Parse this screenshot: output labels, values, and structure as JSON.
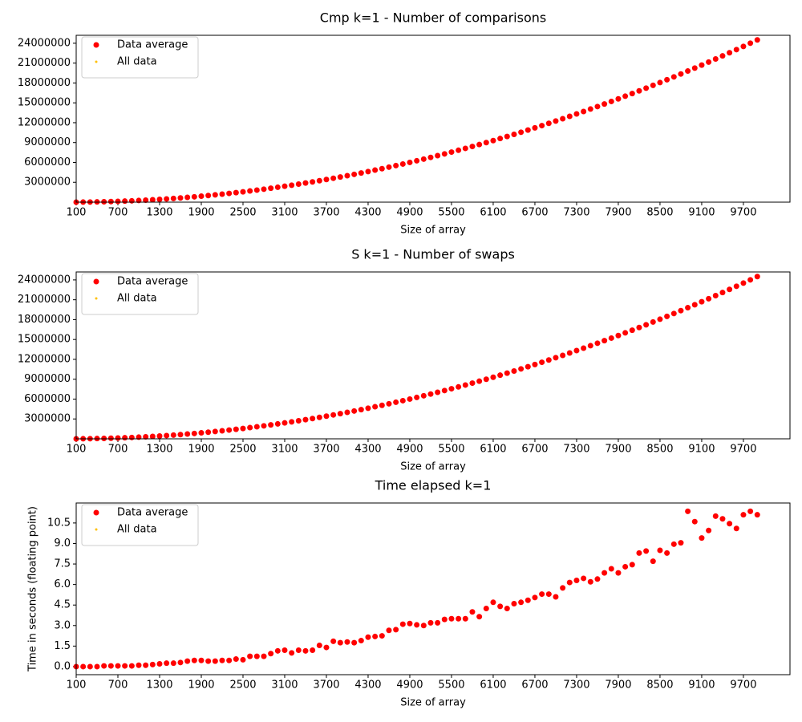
{
  "chart_data": [
    {
      "type": "scatter",
      "title": "Cmp k=1 - Number of comparisons",
      "x_label": "Size of array",
      "x": [
        100,
        200,
        300,
        400,
        500,
        600,
        700,
        800,
        900,
        1000,
        1100,
        1200,
        1300,
        1400,
        1500,
        1600,
        1700,
        1800,
        1900,
        2000,
        2100,
        2200,
        2300,
        2400,
        2500,
        2600,
        2700,
        2800,
        2900,
        3000,
        3100,
        3200,
        3300,
        3400,
        3500,
        3600,
        3700,
        3800,
        3900,
        4000,
        4100,
        4200,
        4300,
        4400,
        4500,
        4600,
        4700,
        4800,
        4900,
        5000,
        5100,
        5200,
        5300,
        5400,
        5500,
        5600,
        5700,
        5800,
        5900,
        6000,
        6100,
        6200,
        6300,
        6400,
        6500,
        6600,
        6700,
        6800,
        6900,
        7000,
        7100,
        7200,
        7300,
        7400,
        7500,
        7600,
        7700,
        7800,
        7900,
        8000,
        8100,
        8200,
        8300,
        8400,
        8500,
        8600,
        8700,
        8800,
        8900,
        9000,
        9100,
        9200,
        9300,
        9400,
        9500,
        9600,
        9700,
        9800,
        9900
      ],
      "series": [
        {
          "name": "Data average",
          "color": "#ff0000",
          "values": [
            2500,
            10000,
            22500,
            40000,
            62500,
            90000,
            122500,
            160000,
            202500,
            250000,
            302500,
            360000,
            422500,
            490000,
            562500,
            640000,
            722500,
            810000,
            902500,
            1000000,
            1102500,
            1210000,
            1322500,
            1440000,
            1562500,
            1690000,
            1822500,
            1960000,
            2102500,
            2250000,
            2402500,
            2560000,
            2722500,
            2890000,
            3062500,
            3240000,
            3422500,
            3610000,
            3802500,
            4000000,
            4202500,
            4410000,
            4622500,
            4840000,
            5062500,
            5290000,
            5522500,
            5760000,
            6002500,
            6250000,
            6502500,
            6760000,
            7022500,
            7290000,
            7562500,
            7840000,
            8122500,
            8410000,
            8702500,
            9000000,
            9302500,
            9610000,
            9922500,
            10240000,
            10562500,
            10890000,
            11222500,
            11560000,
            11902500,
            12250000,
            12602500,
            12960000,
            13322500,
            13690000,
            14062500,
            14440000,
            14822500,
            15210000,
            15602500,
            16000000,
            16402500,
            16810000,
            17222500,
            17640000,
            18062500,
            18490000,
            18922500,
            19360000,
            19802500,
            20250000,
            20702500,
            21160000,
            21622500,
            22090000,
            22562500,
            23040000,
            23522500,
            24010000,
            24502500
          ]
        },
        {
          "name": "All data",
          "color": "#ffc000"
        }
      ],
      "xlim": [
        100,
        10370
      ],
      "xticks": [
        100,
        700,
        1300,
        1900,
        2500,
        3100,
        3700,
        4300,
        4900,
        5500,
        6100,
        6700,
        7300,
        7900,
        8500,
        9100,
        9700
      ],
      "ylim": [
        0,
        25200000
      ],
      "yticks": [
        3000000,
        6000000,
        9000000,
        12000000,
        15000000,
        18000000,
        21000000,
        24000000
      ],
      "legend": "upper left"
    },
    {
      "type": "scatter",
      "title": "S k=1 - Number of swaps",
      "x_label": "Size of array",
      "x": [
        100,
        200,
        300,
        400,
        500,
        600,
        700,
        800,
        900,
        1000,
        1100,
        1200,
        1300,
        1400,
        1500,
        1600,
        1700,
        1800,
        1900,
        2000,
        2100,
        2200,
        2300,
        2400,
        2500,
        2600,
        2700,
        2800,
        2900,
        3000,
        3100,
        3200,
        3300,
        3400,
        3500,
        3600,
        3700,
        3800,
        3900,
        4000,
        4100,
        4200,
        4300,
        4400,
        4500,
        4600,
        4700,
        4800,
        4900,
        5000,
        5100,
        5200,
        5300,
        5400,
        5500,
        5600,
        5700,
        5800,
        5900,
        6000,
        6100,
        6200,
        6300,
        6400,
        6500,
        6600,
        6700,
        6800,
        6900,
        7000,
        7100,
        7200,
        7300,
        7400,
        7500,
        7600,
        7700,
        7800,
        7900,
        8000,
        8100,
        8200,
        8300,
        8400,
        8500,
        8600,
        8700,
        8800,
        8900,
        9000,
        9100,
        9200,
        9300,
        9400,
        9500,
        9600,
        9700,
        9800,
        9900
      ],
      "series": [
        {
          "name": "Data average",
          "color": "#ff0000",
          "values": [
            2500,
            10000,
            22500,
            40000,
            62500,
            90000,
            122500,
            160000,
            202500,
            250000,
            302500,
            360000,
            422500,
            490000,
            562500,
            640000,
            722500,
            810000,
            902500,
            1000000,
            1102500,
            1210000,
            1322500,
            1440000,
            1562500,
            1690000,
            1822500,
            1960000,
            2102500,
            2250000,
            2402500,
            2560000,
            2722500,
            2890000,
            3062500,
            3240000,
            3422500,
            3610000,
            3802500,
            4000000,
            4202500,
            4410000,
            4622500,
            4840000,
            5062500,
            5290000,
            5522500,
            5760000,
            6002500,
            6250000,
            6502500,
            6760000,
            7022500,
            7290000,
            7562500,
            7840000,
            8122500,
            8410000,
            8702500,
            9000000,
            9302500,
            9610000,
            9922500,
            10240000,
            10562500,
            10890000,
            11222500,
            11560000,
            11902500,
            12250000,
            12602500,
            12960000,
            13322500,
            13690000,
            14062500,
            14440000,
            14822500,
            15210000,
            15602500,
            16000000,
            16402500,
            16810000,
            17222500,
            17640000,
            18062500,
            18490000,
            18922500,
            19360000,
            19802500,
            20250000,
            20702500,
            21160000,
            21622500,
            22090000,
            22562500,
            23040000,
            23522500,
            24010000,
            24502500
          ]
        },
        {
          "name": "All data",
          "color": "#ffc000"
        }
      ],
      "xlim": [
        100,
        10370
      ],
      "xticks": [
        100,
        700,
        1300,
        1900,
        2500,
        3100,
        3700,
        4300,
        4900,
        5500,
        6100,
        6700,
        7300,
        7900,
        8500,
        9100,
        9700
      ],
      "ylim": [
        0,
        25200000
      ],
      "yticks": [
        3000000,
        6000000,
        9000000,
        12000000,
        15000000,
        18000000,
        21000000,
        24000000
      ],
      "legend": "upper left"
    },
    {
      "type": "scatter",
      "title": "Time elapsed k=1",
      "x_label": "Size of array",
      "y_label": "Time in seconds (floating point)",
      "x": [
        100,
        200,
        300,
        400,
        500,
        600,
        700,
        800,
        900,
        1000,
        1100,
        1200,
        1300,
        1400,
        1500,
        1600,
        1700,
        1800,
        1900,
        2000,
        2100,
        2200,
        2300,
        2400,
        2500,
        2600,
        2700,
        2800,
        2900,
        3000,
        3100,
        3200,
        3300,
        3400,
        3500,
        3600,
        3700,
        3800,
        3900,
        4000,
        4100,
        4200,
        4300,
        4400,
        4500,
        4600,
        4700,
        4800,
        4900,
        5000,
        5100,
        5200,
        5300,
        5400,
        5500,
        5600,
        5700,
        5800,
        5900,
        6000,
        6100,
        6200,
        6300,
        6400,
        6500,
        6600,
        6700,
        6800,
        6900,
        7000,
        7100,
        7200,
        7300,
        7400,
        7500,
        7600,
        7700,
        7800,
        7900,
        8000,
        8100,
        8200,
        8300,
        8400,
        8500,
        8600,
        8700,
        8800,
        8900,
        9000,
        9100,
        9200,
        9300,
        9400,
        9500,
        9600,
        9700,
        9800,
        9900
      ],
      "series": [
        {
          "name": "Data average",
          "color": "#ff0000",
          "values": [
            0,
            0,
            0,
            0,
            0.05,
            0.05,
            0.05,
            0.05,
            0.05,
            0.1,
            0.1,
            0.15,
            0.2,
            0.25,
            0.25,
            0.3,
            0.4,
            0.45,
            0.45,
            0.4,
            0.4,
            0.45,
            0.45,
            0.55,
            0.5,
            0.75,
            0.75,
            0.75,
            0.95,
            1.15,
            1.2,
            1.0,
            1.2,
            1.15,
            1.2,
            1.55,
            1.4,
            1.85,
            1.75,
            1.8,
            1.75,
            1.9,
            2.15,
            2.2,
            2.25,
            2.65,
            2.7,
            3.1,
            3.15,
            3.05,
            3.0,
            3.2,
            3.2,
            3.45,
            3.5,
            3.5,
            3.5,
            4.0,
            3.65,
            4.25,
            4.7,
            4.4,
            4.25,
            4.6,
            4.7,
            4.85,
            5.05,
            5.3,
            5.3,
            5.1,
            5.75,
            6.15,
            6.3,
            6.45,
            6.2,
            6.4,
            6.85,
            7.15,
            6.85,
            7.3,
            7.45,
            8.3,
            8.45,
            7.7,
            8.5,
            8.3,
            8.95,
            9.05,
            11.35,
            10.6,
            9.4,
            9.95,
            11.0,
            10.8,
            10.45,
            10.1,
            11.1,
            11.35,
            11.1
          ]
        },
        {
          "name": "All data",
          "color": "#ffc000"
        }
      ],
      "xlim": [
        100,
        10370
      ],
      "xticks": [
        100,
        700,
        1300,
        1900,
        2500,
        3100,
        3700,
        4300,
        4900,
        5500,
        6100,
        6700,
        7300,
        7900,
        8500,
        9100,
        9700
      ],
      "ylim": [
        -0.59,
        11.96
      ],
      "yticks": [
        {
          "value": 0,
          "label": "0.0"
        },
        1.5,
        {
          "value": 3,
          "label": "3.0"
        },
        4.5,
        {
          "value": 6,
          "label": "6.0"
        },
        7.5,
        {
          "value": 9,
          "label": "9.0"
        },
        10.5
      ],
      "legend": "upper left"
    }
  ]
}
